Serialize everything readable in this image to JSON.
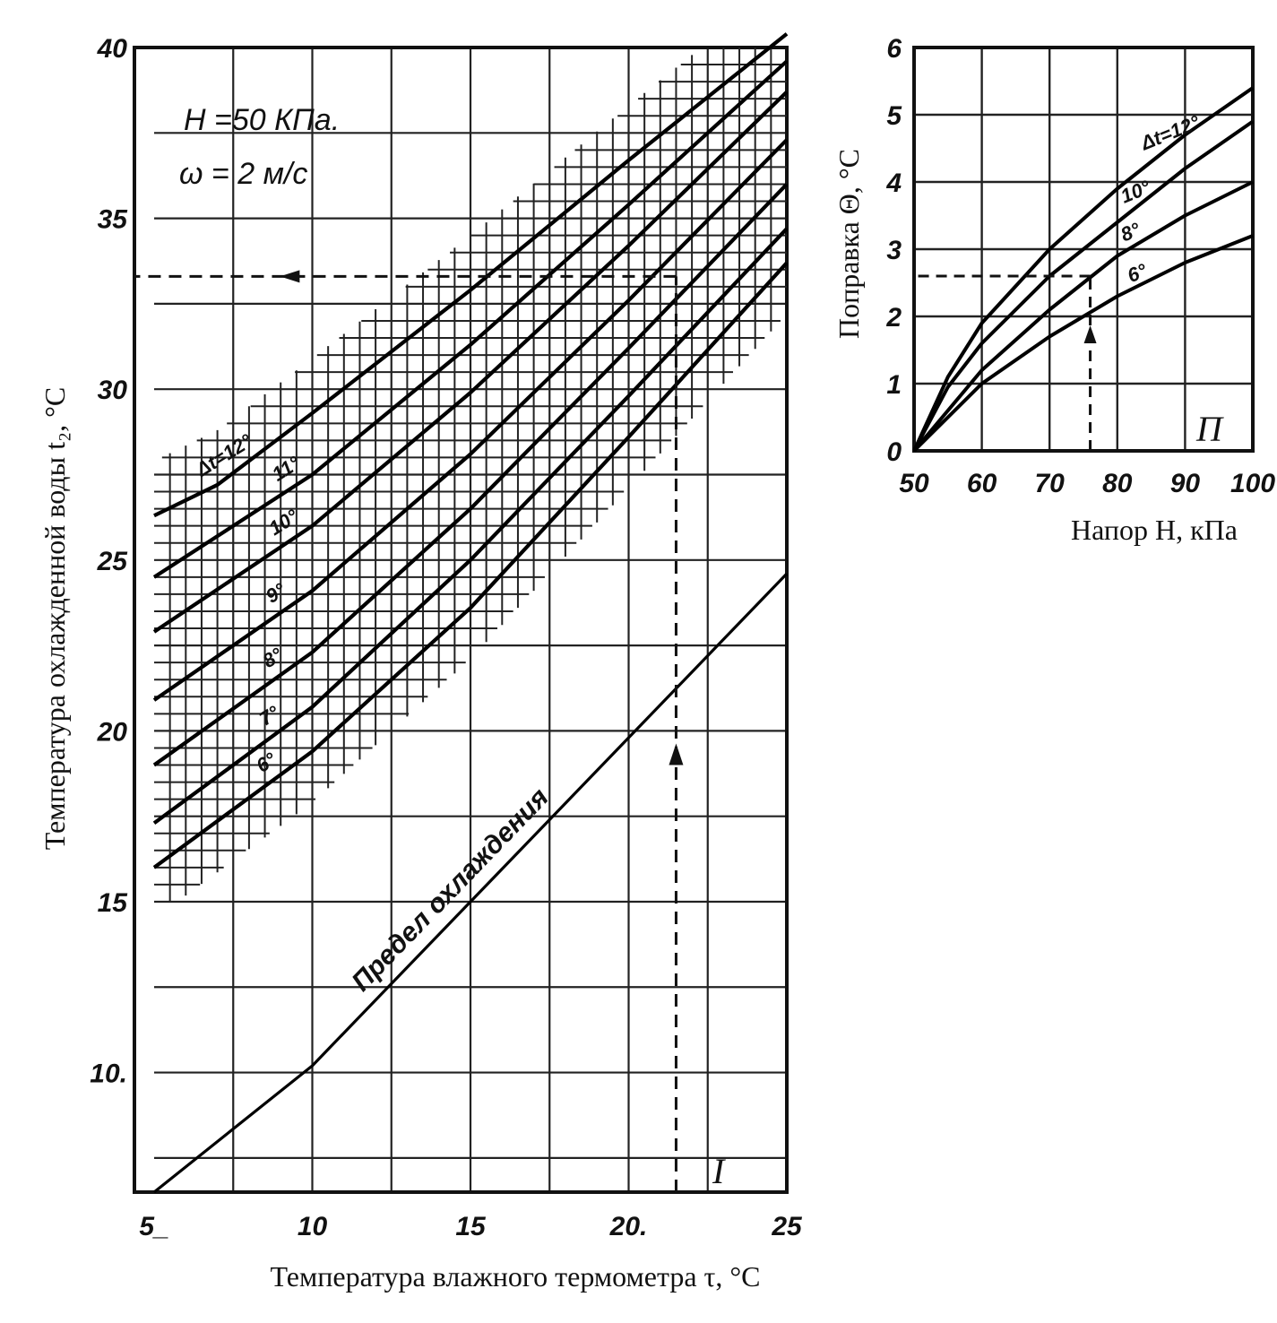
{
  "chart_data": [
    {
      "type": "line",
      "panel_label": "I",
      "xlabel": "Температура влажного термометра τ, °C",
      "ylabel": "Температура охлажденной воды  t₂, °C",
      "xlim": [
        5,
        25
      ],
      "ylim": [
        6.5,
        40
      ],
      "x_ticks": [
        5,
        10,
        15,
        20,
        25
      ],
      "x_tick_labels": [
        "5_",
        "10",
        "15",
        "20.",
        "25"
      ],
      "y_ticks": [
        10,
        15,
        20,
        25,
        30,
        35,
        40
      ],
      "y_tick_labels": [
        "10.",
        "15",
        "20",
        "25",
        "30",
        "35",
        "40"
      ],
      "annotation_lines": [
        "H =50 КПа.",
        "ω = 2 м/с"
      ],
      "cooling_limit_label": "Предел  охлаждения",
      "series": [
        {
          "name": "Δt=12°",
          "x": [
            5,
            7,
            10,
            15,
            20,
            25
          ],
          "y": [
            26.3,
            27.2,
            29.3,
            32.9,
            36.7,
            40.4
          ]
        },
        {
          "name": "11°",
          "x": [
            5,
            10,
            15,
            20,
            25
          ],
          "y": [
            24.5,
            27.5,
            31.3,
            35.4,
            39.6
          ]
        },
        {
          "name": "10°",
          "x": [
            5,
            10,
            15,
            20,
            25
          ],
          "y": [
            22.9,
            26.0,
            29.9,
            34.2,
            38.7
          ]
        },
        {
          "name": "9°",
          "x": [
            5,
            10,
            15,
            20,
            25
          ],
          "y": [
            20.9,
            24.1,
            28.1,
            32.6,
            37.3
          ]
        },
        {
          "name": "8°",
          "x": [
            5,
            10,
            15,
            20,
            25
          ],
          "y": [
            19.0,
            22.3,
            26.5,
            31.2,
            36.0
          ]
        },
        {
          "name": "7°",
          "x": [
            5,
            10,
            15,
            20,
            25
          ],
          "y": [
            17.3,
            20.7,
            25.0,
            29.8,
            34.7
          ]
        },
        {
          "name": "6°",
          "x": [
            5,
            10,
            15,
            20,
            25
          ],
          "y": [
            16.0,
            19.4,
            23.6,
            28.6,
            33.7
          ]
        },
        {
          "name": "Предел  охлаждения",
          "x": [
            5,
            10,
            15,
            20,
            25
          ],
          "y": [
            6.5,
            10.2,
            15.0,
            19.8,
            24.6
          ]
        }
      ],
      "guide_dashed": {
        "x": 21.5,
        "y": 33.3
      }
    },
    {
      "type": "line",
      "panel_label": "П",
      "xlabel": "Напор Н, кПа",
      "ylabel": "Поправка Θ, °C",
      "xlim": [
        50,
        100
      ],
      "ylim": [
        0,
        6
      ],
      "x_ticks": [
        50,
        60,
        70,
        80,
        90,
        100
      ],
      "x_tick_labels": [
        "50",
        "60",
        "70",
        "80",
        "90",
        "100"
      ],
      "y_ticks": [
        0,
        1,
        2,
        3,
        4,
        5,
        6
      ],
      "y_tick_labels": [
        "0",
        "1",
        "2",
        "3",
        "4",
        "5",
        "6"
      ],
      "series": [
        {
          "name": "Δt=12°",
          "x": [
            50,
            55,
            60,
            70,
            80,
            90,
            100
          ],
          "y": [
            0,
            1.1,
            1.9,
            3.0,
            3.9,
            4.7,
            5.4
          ]
        },
        {
          "name": "10°",
          "x": [
            50,
            55,
            60,
            70,
            80,
            90,
            100
          ],
          "y": [
            0,
            0.95,
            1.6,
            2.6,
            3.4,
            4.2,
            4.9
          ]
        },
        {
          "name": "8°",
          "x": [
            50,
            60,
            70,
            80,
            90,
            100
          ],
          "y": [
            0,
            1.2,
            2.1,
            2.9,
            3.5,
            4.0
          ]
        },
        {
          "name": "6°",
          "x": [
            50,
            60,
            70,
            80,
            90,
            100
          ],
          "y": [
            0,
            1.0,
            1.7,
            2.3,
            2.8,
            3.2
          ]
        }
      ],
      "guide_dashed": {
        "x": 76,
        "y": 2.6
      }
    }
  ]
}
